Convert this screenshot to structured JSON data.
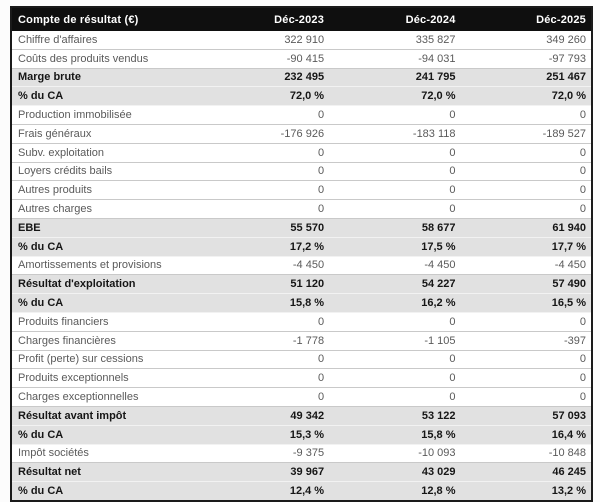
{
  "colors": {
    "header_bg": "#0f0f0f",
    "header_fg": "#ffffff",
    "band_bg": "#e1e1e1",
    "regular_fg": "#5a5a5a",
    "strong_fg": "#161616",
    "row_line": "#c9c9c9",
    "outer_border": "#1a1a1a"
  },
  "table": {
    "header": {
      "label": "Compte de résultat (€)",
      "columns": [
        "Déc-2023",
        "Déc-2024",
        "Déc-2025"
      ]
    },
    "rows": [
      {
        "label": "Chiffre d'affaires",
        "values": [
          "322 910",
          "335 827",
          "349 260"
        ],
        "emphasis": false
      },
      {
        "label": "Coûts des produits vendus",
        "values": [
          "-90 415",
          "-94 031",
          "-97 793"
        ],
        "emphasis": false
      },
      {
        "label": "Marge brute",
        "values": [
          "232 495",
          "241 795",
          "251 467"
        ],
        "emphasis": true
      },
      {
        "label": "% du CA",
        "values": [
          "72,0 %",
          "72,0 %",
          "72,0 %"
        ],
        "emphasis": true
      },
      {
        "label": "Production immobilisée",
        "values": [
          "0",
          "0",
          "0"
        ],
        "emphasis": false
      },
      {
        "label": "Frais généraux",
        "values": [
          "-176 926",
          "-183 118",
          "-189 527"
        ],
        "emphasis": false
      },
      {
        "label": "Subv. exploitation",
        "values": [
          "0",
          "0",
          "0"
        ],
        "emphasis": false
      },
      {
        "label": "Loyers crédits bails",
        "values": [
          "0",
          "0",
          "0"
        ],
        "emphasis": false
      },
      {
        "label": "Autres produits",
        "values": [
          "0",
          "0",
          "0"
        ],
        "emphasis": false
      },
      {
        "label": "Autres charges",
        "values": [
          "0",
          "0",
          "0"
        ],
        "emphasis": false
      },
      {
        "label": "EBE",
        "values": [
          "55 570",
          "58 677",
          "61 940"
        ],
        "emphasis": true
      },
      {
        "label": "% du CA",
        "values": [
          "17,2 %",
          "17,5 %",
          "17,7 %"
        ],
        "emphasis": true
      },
      {
        "label": "Amortissements et provisions",
        "values": [
          "-4 450",
          "-4 450",
          "-4 450"
        ],
        "emphasis": false
      },
      {
        "label": "Résultat d'exploitation",
        "values": [
          "51 120",
          "54 227",
          "57 490"
        ],
        "emphasis": true
      },
      {
        "label": "% du CA",
        "values": [
          "15,8 %",
          "16,2 %",
          "16,5 %"
        ],
        "emphasis": true
      },
      {
        "label": "Produits financiers",
        "values": [
          "0",
          "0",
          "0"
        ],
        "emphasis": false
      },
      {
        "label": "Charges financières",
        "values": [
          "-1 778",
          "-1 105",
          "-397"
        ],
        "emphasis": false
      },
      {
        "label": "Profit (perte) sur cessions",
        "values": [
          "0",
          "0",
          "0"
        ],
        "emphasis": false
      },
      {
        "label": "Produits exceptionnels",
        "values": [
          "0",
          "0",
          "0"
        ],
        "emphasis": false
      },
      {
        "label": "Charges exceptionnelles",
        "values": [
          "0",
          "0",
          "0"
        ],
        "emphasis": false
      },
      {
        "label": "Résultat avant impôt",
        "values": [
          "49 342",
          "53 122",
          "57 093"
        ],
        "emphasis": true
      },
      {
        "label": "% du CA",
        "values": [
          "15,3 %",
          "15,8 %",
          "16,4 %"
        ],
        "emphasis": true
      },
      {
        "label": "Impôt sociétés",
        "values": [
          "-9 375",
          "-10 093",
          "-10 848"
        ],
        "emphasis": false
      },
      {
        "label": "Résultat net",
        "values": [
          "39 967",
          "43 029",
          "46 245"
        ],
        "emphasis": true
      },
      {
        "label": "% du CA",
        "values": [
          "12,4 %",
          "12,8 %",
          "13,2 %"
        ],
        "emphasis": true
      }
    ]
  }
}
